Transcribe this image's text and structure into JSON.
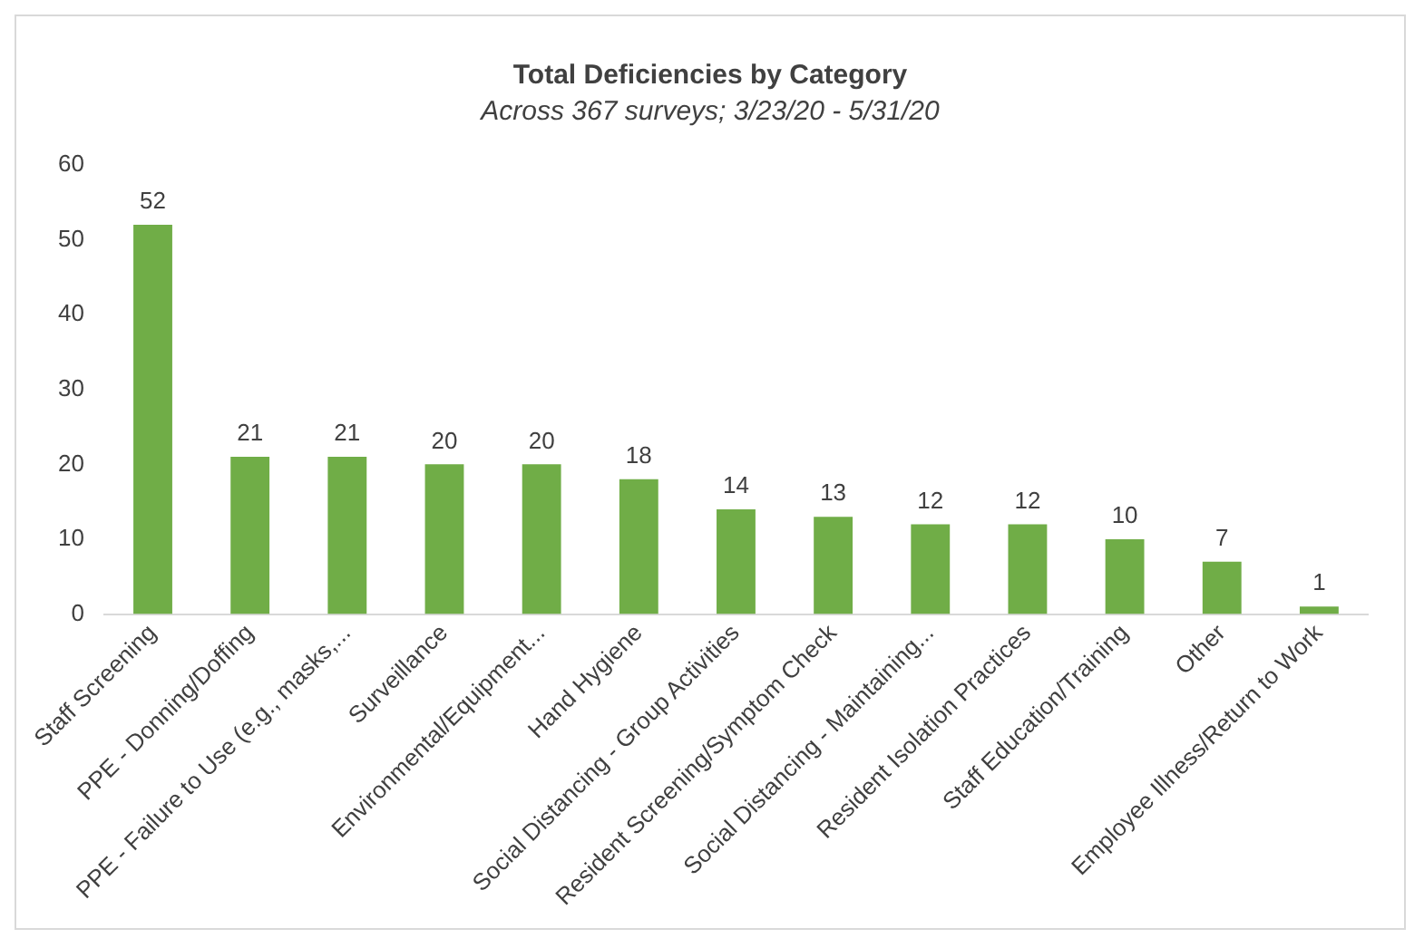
{
  "chart_data": {
    "type": "bar",
    "title": "Total Deficiencies by Category",
    "subtitle": "Across 367 surveys; 3/23/20 - 5/31/20",
    "categories": [
      "Staff Screening",
      "PPE - Donning/Doffing",
      "PPE - Failure to Use (e.g., masks,...",
      "Surveillance",
      "Environmental/Equipment...",
      "Hand Hygiene",
      "Social Distancing - Group Activities",
      "Resident Screening/Symptom Check",
      "Social Distancing - Maintaining...",
      "Resident Isolation Practices",
      "Staff Education/Training",
      "Other",
      "Employee Illness/Return to Work"
    ],
    "values": [
      52,
      21,
      21,
      20,
      20,
      18,
      14,
      13,
      12,
      12,
      10,
      7,
      1
    ],
    "color": "#70ad47",
    "ylim": [
      0,
      60
    ],
    "yticks": [
      0,
      10,
      20,
      30,
      40,
      50,
      60
    ],
    "grid": false,
    "data_labels": true
  }
}
